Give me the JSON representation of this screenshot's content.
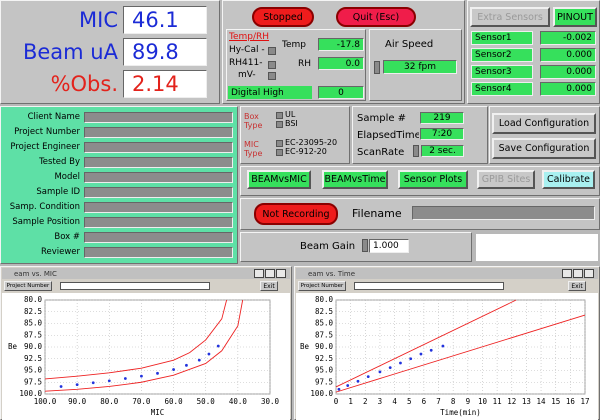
{
  "readouts": [
    {
      "label": "MIC",
      "value": "46.1"
    },
    {
      "label": "Beam uA",
      "value": "89.8"
    },
    {
      "label": "%Obs.",
      "value": "2.14"
    }
  ],
  "controls": {
    "stopped": "Stopped",
    "quit": "Quit (Esc)",
    "extra_sensors": "Extra Sensors",
    "pinout": "PINOUT"
  },
  "temp_rh": {
    "title": "Temp/RH",
    "hycal": "Hy-Cal -",
    "rh411": "RH411-",
    "mv": "mV-",
    "temp_label": "Temp",
    "temp": "-17.8",
    "rh_label": "RH",
    "rh": "0.0",
    "digital_label": "Digital High",
    "digital": "0"
  },
  "air_speed": {
    "label": "Air Speed",
    "value": "32 fpm"
  },
  "sensors": [
    {
      "label": "Sensor1",
      "value": "-0.002"
    },
    {
      "label": "Sensor2",
      "value": "0.000"
    },
    {
      "label": "Sensor3",
      "value": "0.000"
    },
    {
      "label": "Sensor4",
      "value": "0.000"
    }
  ],
  "form": {
    "fields": [
      "Client Name",
      "Project Number",
      "Project Engineer",
      "Tested By",
      "Model",
      "Sample ID",
      "Samp. Condition",
      "Sample Position",
      "Box #",
      "Reviewer"
    ]
  },
  "box_type": {
    "label": "Box Type",
    "options": [
      "UL",
      "BSI"
    ]
  },
  "mic_type": {
    "label": "MIC Type",
    "options": [
      "EC-23095-20",
      "EC-912-20"
    ]
  },
  "status": {
    "sample_label": "Sample #",
    "sample": "219",
    "elapsed_label": "ElapsedTime",
    "elapsed": "7:20",
    "scan_label": "ScanRate",
    "scan": "2 sec."
  },
  "config_buttons": [
    "Load Configuration",
    "Save Configuration"
  ],
  "plot_buttons": [
    "BEAMvsMIC",
    "BEAMvsTime",
    "Sensor Plots",
    "GPIB Sites",
    "Calibrate"
  ],
  "recording": {
    "button": "Not Recording",
    "filename_label": "Filename"
  },
  "beam_gain": {
    "label": "Beam Gain",
    "value": "1.000"
  },
  "plots": [
    {
      "title": "eam vs. MIC",
      "project_button": "Project Number",
      "exit_button": "Exit",
      "chart": {
        "type": "scatter",
        "xlabel": "MIC",
        "ylabel": "Be",
        "grid": true,
        "xlim": [
          100,
          30
        ],
        "xticks": [
          {
            "value": 100,
            "label": "100.0"
          },
          {
            "value": 90,
            "label": "90.0"
          },
          {
            "value": 80,
            "label": "80.0"
          },
          {
            "value": 70,
            "label": "70.0"
          },
          {
            "value": 60,
            "label": "60.0"
          },
          {
            "value": 50,
            "label": "50.0"
          },
          {
            "value": 40,
            "label": "40.0"
          },
          {
            "value": 30,
            "label": "30.0"
          }
        ],
        "ylim": [
          100,
          80
        ],
        "yticks": [
          {
            "value": 80,
            "label": "80.0"
          },
          {
            "value": 82.5,
            "label": "82.5"
          },
          {
            "value": 85,
            "label": "85.0"
          },
          {
            "value": 87.5,
            "label": "87.5"
          },
          {
            "value": 90,
            "label": "90.0"
          },
          {
            "value": 92.5,
            "label": "92.5"
          },
          {
            "value": 95,
            "label": "95.0"
          },
          {
            "value": 97.5,
            "label": "97.5"
          },
          {
            "value": 100,
            "label": "100.0"
          }
        ],
        "series": [
          {
            "color": "#2233dd",
            "mode": "markers",
            "x": [
              95,
              90,
              85,
              80,
              75,
              70,
              65,
              60,
              56,
              52,
              49,
              46.1
            ],
            "values": [
              98.4,
              98.0,
              97.6,
              97.2,
              96.7,
              96.2,
              95.6,
              94.8,
              93.9,
              92.8,
              91.5,
              89.8
            ]
          },
          {
            "color": "#ee2222",
            "mode": "lines",
            "x": [
              100,
              90,
              80,
              70,
              60,
              55,
              50,
              45,
              43.5
            ],
            "values": [
              96.8,
              96.2,
              95.5,
              94.5,
              92.8,
              91.2,
              88.5,
              84,
              80
            ]
          },
          {
            "color": "#ee2222",
            "mode": "lines",
            "x": [
              100,
              90,
              80,
              70,
              60,
              50,
              45,
              40,
              38.5
            ],
            "values": [
              99.4,
              99.0,
              98.4,
              97.5,
              96.0,
              93.5,
              90.8,
              85.5,
              80
            ]
          }
        ]
      }
    },
    {
      "title": "eam vs. Time",
      "project_button": "Project Number",
      "exit_button": "Exit",
      "chart": {
        "type": "scatter",
        "xlabel": "Time(min)",
        "ylabel": "Be",
        "grid": true,
        "xlim": [
          0,
          17
        ],
        "xticks": [
          0,
          1,
          2,
          3,
          4,
          5,
          6,
          7,
          8,
          9,
          10,
          11,
          12,
          13,
          14,
          15,
          16,
          17
        ],
        "ylim": [
          100,
          80
        ],
        "yticks": [
          {
            "value": 80,
            "label": "80.0"
          },
          {
            "value": 82.5,
            "label": "82.5"
          },
          {
            "value": 85,
            "label": "85.0"
          },
          {
            "value": 87.5,
            "label": "87.5"
          },
          {
            "value": 90,
            "label": "90.0"
          },
          {
            "value": 92.5,
            "label": "92.5"
          },
          {
            "value": 95,
            "label": "95.0"
          },
          {
            "value": 97.5,
            "label": "97.5"
          },
          {
            "value": 100,
            "label": "100.0"
          }
        ],
        "series": [
          {
            "color": "#2233dd",
            "mode": "markers",
            "x": [
              0.2,
              0.8,
              1.5,
              2.2,
              3,
              3.7,
              4.4,
              5.1,
              5.8,
              6.5,
              7.3
            ],
            "values": [
              99.0,
              98.2,
              97.3,
              96.3,
              95.3,
              94.4,
              93.4,
              92.5,
              91.5,
              90.7,
              89.8
            ]
          },
          {
            "color": "#ee2222",
            "mode": "lines",
            "x": [
              0,
              12.3
            ],
            "values": [
              98.5,
              80
            ]
          },
          {
            "color": "#ee2222",
            "mode": "lines",
            "x": [
              0,
              17
            ],
            "values": [
              99.6,
              83.2
            ]
          }
        ]
      }
    }
  ]
}
